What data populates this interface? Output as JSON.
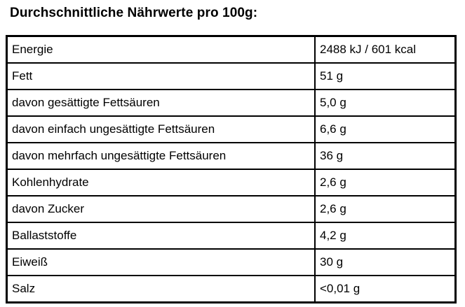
{
  "header": {
    "title": "Durchschnittliche Nährwerte pro 100g:"
  },
  "table": {
    "rows": [
      [
        "Energie",
        "2488 kJ / 601 kcal"
      ],
      [
        "Fett",
        "51 g"
      ],
      [
        "davon gesättigte Fettsäuren",
        "5,0 g"
      ],
      [
        "davon einfach ungesättigte Fettsäuren",
        "6,6 g"
      ],
      [
        "davon mehrfach ungesättigte Fettsäuren",
        "36 g"
      ],
      [
        "Kohlenhydrate",
        "2,6 g"
      ],
      [
        "davon Zucker",
        "2,6 g"
      ],
      [
        "Ballaststoffe",
        "4,2 g"
      ],
      [
        "Eiweiß",
        "30 g"
      ],
      [
        "Salz",
        "<0,01 g"
      ]
    ]
  }
}
